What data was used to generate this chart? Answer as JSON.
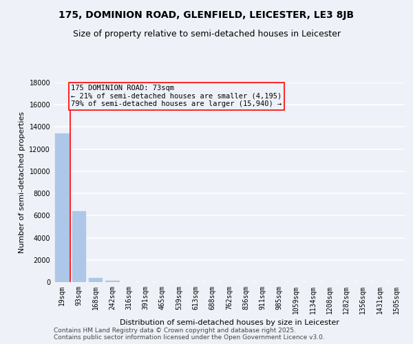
{
  "title": "175, DOMINION ROAD, GLENFIELD, LEICESTER, LE3 8JB",
  "subtitle": "Size of property relative to semi-detached houses in Leicester",
  "xlabel": "Distribution of semi-detached houses by size in Leicester",
  "ylabel": "Number of semi-detached properties",
  "categories": [
    "19sqm",
    "93sqm",
    "168sqm",
    "242sqm",
    "316sqm",
    "391sqm",
    "465sqm",
    "539sqm",
    "613sqm",
    "688sqm",
    "762sqm",
    "836sqm",
    "911sqm",
    "985sqm",
    "1059sqm",
    "1134sqm",
    "1208sqm",
    "1282sqm",
    "1356sqm",
    "1431sqm",
    "1505sqm"
  ],
  "values": [
    13400,
    6400,
    370,
    100,
    0,
    0,
    0,
    0,
    0,
    0,
    0,
    0,
    0,
    0,
    0,
    0,
    0,
    0,
    0,
    0,
    0
  ],
  "bar_color": "#aec6e8",
  "annotation_line": "175 DOMINION ROAD: 73sqm",
  "annotation_smaller": "← 21% of semi-detached houses are smaller (4,195)",
  "annotation_larger": "79% of semi-detached houses are larger (15,940) →",
  "ylim": [
    0,
    18000
  ],
  "yticks": [
    0,
    2000,
    4000,
    6000,
    8000,
    10000,
    12000,
    14000,
    16000,
    18000
  ],
  "footer1": "Contains HM Land Registry data © Crown copyright and database right 2025.",
  "footer2": "Contains public sector information licensed under the Open Government Licence v3.0.",
  "bg_color": "#eef2f8",
  "grid_color": "#ffffff",
  "title_fontsize": 10,
  "subtitle_fontsize": 9,
  "axis_label_fontsize": 8,
  "tick_fontsize": 7,
  "ann_fontsize": 7.5,
  "footer_fontsize": 6.5
}
